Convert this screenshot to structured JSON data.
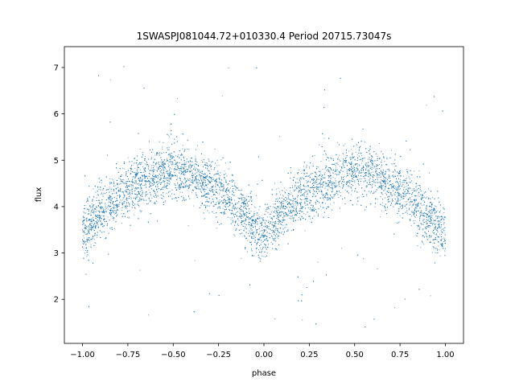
{
  "chart_data": {
    "type": "scatter",
    "title": "1SWASPJ081044.72+010330.4 Period 20715.73047s",
    "xlabel": "phase",
    "ylabel": "flux",
    "xlim": [
      -1.1,
      1.1
    ],
    "ylim": [
      1.05,
      7.45
    ],
    "xticks": [
      -1.0,
      -0.75,
      -0.5,
      -0.25,
      0.0,
      0.25,
      0.5,
      0.75,
      1.0
    ],
    "xtick_labels": [
      "−1.00",
      "−0.75",
      "−0.50",
      "−0.25",
      "0.00",
      "0.25",
      "0.50",
      "0.75",
      "1.00"
    ],
    "yticks": [
      2,
      3,
      4,
      5,
      6,
      7
    ],
    "ytick_labels": [
      "2",
      "3",
      "4",
      "5",
      "6",
      "7"
    ],
    "grid": false,
    "legend": "none",
    "marker_color": "#1f77b4",
    "series": [
      {
        "phase": [
          -1.0,
          -0.9,
          -0.8,
          -0.7,
          -0.6,
          -0.5,
          -0.4,
          -0.3,
          -0.2,
          -0.1,
          0.0,
          0.1,
          0.2,
          0.3,
          0.4,
          0.5,
          0.6,
          0.7,
          0.8,
          0.9,
          1.0
        ],
        "flux_mean": [
          3.4,
          3.9,
          4.25,
          4.5,
          4.7,
          4.8,
          4.7,
          4.5,
          4.2,
          3.8,
          3.3,
          3.85,
          4.2,
          4.45,
          4.65,
          4.75,
          4.65,
          4.45,
          4.2,
          3.8,
          3.35
        ],
        "scatter_sd": 0.3,
        "outlier_range": [
          1.3,
          7.15
        ]
      }
    ]
  }
}
